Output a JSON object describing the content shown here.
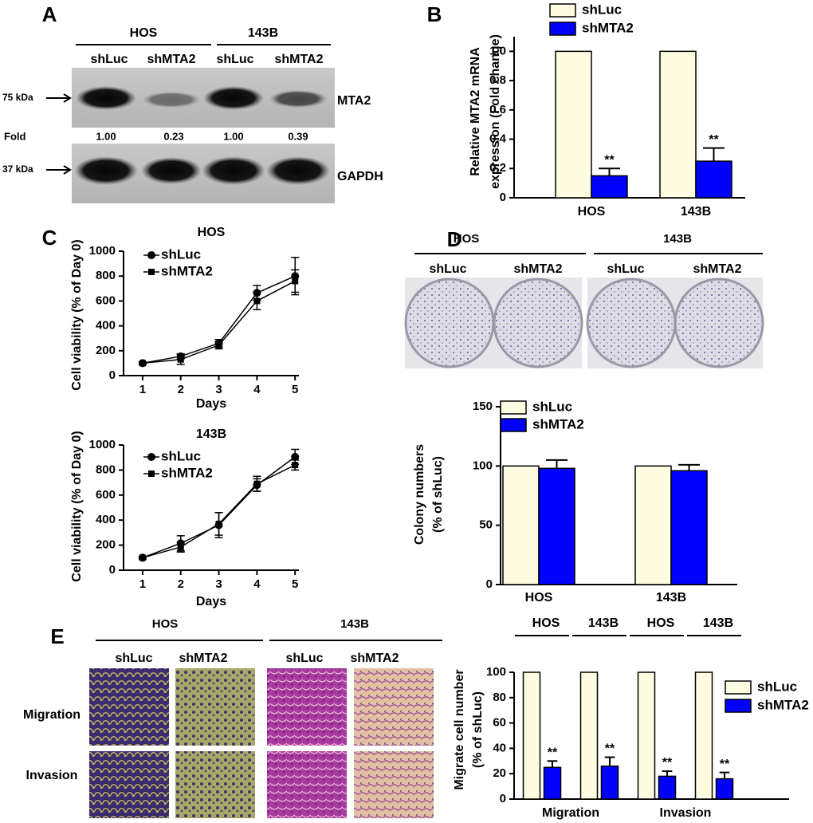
{
  "figure": {
    "panels": [
      "A",
      "B",
      "C",
      "D",
      "E"
    ]
  },
  "blot": {
    "groups": [
      "HOS",
      "143B"
    ],
    "lanes": [
      "shLuc",
      "shMTA2",
      "shLuc",
      "shMTA2"
    ],
    "markers": [
      "75 kDa",
      "37 kDa"
    ],
    "proteins": [
      "MTA2",
      "GAPDH"
    ],
    "fold_label": "Fold",
    "fold": [
      "1.00",
      "0.23",
      "1.00",
      "0.39"
    ]
  },
  "colony": {
    "groups": [
      "HOS",
      "143B"
    ],
    "lanes": [
      "shLuc",
      "shMTA2",
      "shLuc",
      "shMTA2"
    ]
  },
  "transwell": {
    "groups": [
      "HOS",
      "143B"
    ],
    "lanes": [
      "shLuc",
      "shMTA2",
      "shLuc",
      "shMTA2"
    ],
    "rows": [
      "Migration",
      "Invasion"
    ]
  },
  "chart_data": [
    {
      "type": "bar",
      "ylabel": [
        "Relative MTA2 mRNA",
        "expression (Fold change)"
      ],
      "categories": [
        "HOS",
        "143B"
      ],
      "series": [
        {
          "name": "shLuc",
          "color": "#fdfbe0",
          "values": [
            1,
            1
          ]
        },
        {
          "name": "shMTA2",
          "color": "#0000ff",
          "values": [
            0.15,
            0.25
          ],
          "errors": [
            0.05,
            0.09
          ]
        }
      ],
      "annotations": [
        "**",
        "**"
      ],
      "ylim": [
        0,
        1.1
      ],
      "yticks": [
        0,
        0.2,
        0.4,
        0.6,
        0.8,
        {
          "value": 1,
          "label": "1.0"
        }
      ]
    },
    {
      "type": "line",
      "title": "HOS",
      "xlabel": "Days",
      "ylabel": "Cell viability (% of Day 0)",
      "x": [
        1,
        2,
        3,
        4,
        5
      ],
      "xlim": [
        0.5,
        5.1
      ],
      "xticks": [
        1,
        2,
        3,
        4,
        5
      ],
      "ylim": [
        0,
        1000
      ],
      "yticks": [
        0,
        200,
        400,
        600,
        800,
        1000
      ],
      "series": [
        {
          "name": "shLuc",
          "color": "#000000",
          "marker": "circle",
          "values": [
            100,
            155,
            260,
            665,
            800
          ],
          "errors": [
            10,
            20,
            30,
            60,
            150
          ]
        },
        {
          "name": "shMTA2",
          "color": "#000000",
          "marker": "square",
          "values": [
            100,
            130,
            245,
            600,
            760
          ],
          "errors": [
            10,
            40,
            30,
            70,
            90
          ]
        }
      ]
    },
    {
      "type": "line",
      "title": "143B",
      "xlabel": "Days",
      "ylabel": "Cell viability (% of Day 0)",
      "x": [
        1,
        2,
        3,
        4,
        5
      ],
      "xlim": [
        0.5,
        5.1
      ],
      "xticks": [
        1,
        2,
        3,
        4,
        5
      ],
      "ylim": [
        0,
        1000
      ],
      "yticks": [
        0,
        200,
        400,
        600,
        800,
        1000
      ],
      "series": [
        {
          "name": "shLuc",
          "color": "#000000",
          "marker": "circle",
          "values": [
            100,
            215,
            360,
            680,
            905
          ],
          "errors": [
            10,
            60,
            100,
            50,
            60
          ]
        },
        {
          "name": "shMTA2",
          "color": "#000000",
          "marker": "square",
          "values": [
            100,
            185,
            370,
            690,
            840
          ],
          "errors": [
            10,
            40,
            90,
            60,
            40
          ]
        }
      ]
    },
    {
      "type": "bar",
      "ylabel": [
        "Colony numbers",
        "(% of shLuc)"
      ],
      "categories": [
        "HOS",
        "143B"
      ],
      "series": [
        {
          "name": "shLuc",
          "color": "#fdfbe0",
          "values": [
            100,
            100
          ]
        },
        {
          "name": "shMTA2",
          "color": "#0000ff",
          "values": [
            98,
            96
          ],
          "errors": [
            7,
            5
          ]
        }
      ],
      "ylim": [
        0,
        150
      ],
      "yticks": [
        0,
        50,
        100,
        150
      ]
    },
    {
      "type": "bar",
      "ylabel": [
        "Migrate cell number",
        "(% of shLuc)"
      ],
      "categories": [
        "HOS",
        "143B",
        "HOS",
        "143B"
      ],
      "groups": [
        "Migration",
        "Invasion"
      ],
      "series": [
        {
          "name": "shLuc",
          "color": "#fdfbe0",
          "values": [
            100,
            100,
            100,
            100
          ]
        },
        {
          "name": "shMTA2",
          "color": "#0000ff",
          "values": [
            25,
            26,
            18,
            16
          ],
          "errors": [
            5,
            7,
            4,
            5
          ]
        }
      ],
      "annotations": [
        "**",
        "**",
        "**",
        "**"
      ],
      "ylim": [
        0,
        100
      ],
      "yticks": [
        0,
        20,
        40,
        60,
        80,
        100
      ]
    }
  ]
}
